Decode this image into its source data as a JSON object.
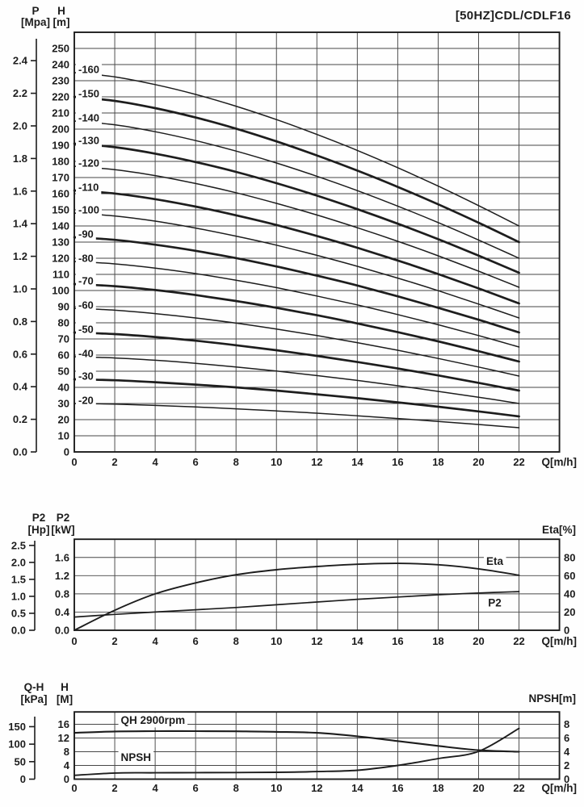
{
  "title": "[50HZ]CDL/CDLF16",
  "colors": {
    "ink": "#1d1d1d",
    "grid": "#474747",
    "background": "#fefefe"
  },
  "chart_data": [
    {
      "id": "head",
      "type": "line",
      "title": "[50HZ]CDL/CDLF16",
      "xlabel": "Q[m/h]",
      "xlim": [
        0,
        24
      ],
      "ylim": [
        0,
        260
      ],
      "grid": true,
      "x": [
        0,
        2,
        4,
        6,
        8,
        10,
        12,
        14,
        16,
        18,
        20,
        22
      ],
      "left_axes": [
        {
          "name": "P",
          "unit": "[Mpa]",
          "ticks": [
            "0.0",
            "0.2",
            "0.4",
            "0.6",
            "0.8",
            "1.0",
            "1.2",
            "1.4",
            "1.6",
            "1.8",
            "2.0",
            "2.2",
            "2.4"
          ]
        },
        {
          "name": "H",
          "unit": "[m]",
          "ticks": [
            "0",
            "10",
            "20",
            "30",
            "40",
            "50",
            "60",
            "70",
            "80",
            "90",
            "100",
            "110",
            "120",
            "130",
            "140",
            "150",
            "160",
            "170",
            "180",
            "190",
            "200",
            "210",
            "220",
            "230",
            "240",
            "250"
          ]
        }
      ],
      "series": [
        {
          "label": "-160",
          "thick": false,
          "axis": "h",
          "values": [
            235,
            232.4,
            227.6,
            221.5,
            214.2,
            205.9,
            196.7,
            186.8,
            176.1,
            164.7,
            152.6,
            140
          ]
        },
        {
          "label": "-150",
          "thick": true,
          "axis": "h",
          "values": [
            220,
            217.5,
            213.0,
            207.2,
            200.3,
            192.4,
            183.7,
            174.3,
            164.2,
            153.4,
            142.0,
            130
          ]
        },
        {
          "label": "-140",
          "thick": false,
          "axis": "h",
          "values": [
            205,
            202.7,
            198.4,
            192.9,
            186.4,
            179.0,
            170.8,
            161.9,
            152.3,
            142.1,
            131.3,
            120
          ]
        },
        {
          "label": "-130",
          "thick": true,
          "axis": "h",
          "values": [
            191,
            188.8,
            184.8,
            179.6,
            173.5,
            166.5,
            158.8,
            150.4,
            141.4,
            131.8,
            121.6,
            111
          ]
        },
        {
          "label": "-120",
          "thick": false,
          "axis": "h",
          "values": [
            177,
            174.9,
            171.2,
            166.3,
            160.6,
            154.0,
            146.8,
            138.9,
            130.5,
            121.5,
            112.0,
            102
          ]
        },
        {
          "label": "-110",
          "thick": true,
          "axis": "h",
          "values": [
            162,
            160.1,
            156.6,
            152.0,
            146.6,
            140.6,
            133.8,
            126.5,
            118.6,
            110.2,
            101.3,
            92
          ]
        },
        {
          "label": "-100",
          "thick": false,
          "axis": "h",
          "values": [
            148,
            146.2,
            143.0,
            138.7,
            133.7,
            128.1,
            121.8,
            115.0,
            107.7,
            99.9,
            91.6,
            83
          ]
        },
        {
          "label": "-90",
          "thick": true,
          "axis": "h",
          "values": [
            133,
            131.4,
            128.4,
            124.6,
            120.1,
            114.9,
            109.2,
            103.1,
            96.4,
            89.3,
            81.9,
            74
          ]
        },
        {
          "label": "-80",
          "thick": false,
          "axis": "h",
          "values": [
            118,
            116.5,
            113.9,
            110.5,
            106.4,
            101.8,
            96.6,
            91.1,
            85.1,
            78.8,
            72.1,
            65
          ]
        },
        {
          "label": "-70",
          "thick": true,
          "axis": "h",
          "values": [
            104,
            102.7,
            100.3,
            97.2,
            93.5,
            89.3,
            84.7,
            79.6,
            74.2,
            68.5,
            62.4,
            56
          ]
        },
        {
          "label": "-60",
          "thick": false,
          "axis": "h",
          "values": [
            89,
            87.8,
            85.7,
            83.0,
            79.8,
            76.1,
            72.1,
            67.7,
            63.0,
            57.9,
            52.6,
            47
          ]
        },
        {
          "label": "-50",
          "thick": true,
          "axis": "h",
          "values": [
            74,
            73.0,
            71.2,
            68.9,
            66.1,
            63.0,
            59.5,
            55.7,
            51.7,
            47.4,
            42.8,
            38
          ]
        },
        {
          "label": "-40",
          "thick": false,
          "axis": "h",
          "values": [
            59,
            58.2,
            56.8,
            54.9,
            52.6,
            50.1,
            47.3,
            44.3,
            41.0,
            37.5,
            33.9,
            30
          ]
        },
        {
          "label": "-30",
          "thick": true,
          "axis": "h",
          "values": [
            45,
            44.4,
            43.2,
            41.7,
            40.0,
            38.0,
            35.7,
            33.3,
            30.7,
            28.0,
            25.1,
            22
          ]
        },
        {
          "label": "-20",
          "thick": false,
          "axis": "h",
          "values": [
            30,
            29.6,
            28.8,
            27.9,
            26.7,
            25.4,
            24.0,
            22.4,
            20.7,
            18.9,
            17.0,
            15
          ]
        }
      ]
    },
    {
      "id": "power",
      "type": "line",
      "xlabel": "Q[m/h]",
      "xlim": [
        0,
        24
      ],
      "x": [
        0,
        2,
        4,
        6,
        8,
        10,
        12,
        14,
        16,
        18,
        20,
        22
      ],
      "left_axes": [
        {
          "name": "P2",
          "unit": "[Hp]",
          "ticks": [
            "0.0",
            "0.5",
            "1.0",
            "1.5",
            "2.0",
            "2.5"
          ]
        },
        {
          "name": "P2",
          "unit": "[kW]",
          "ticks": [
            "0.0",
            "0.4",
            "0.8",
            "1.2",
            "1.6"
          ]
        }
      ],
      "right_axis": {
        "label": "Eta[%]",
        "ticks": [
          "0",
          "20",
          "40",
          "60",
          "80"
        ]
      },
      "series": [
        {
          "label": "Eta",
          "thick": true,
          "axis": "eta",
          "values": [
            0,
            22,
            40,
            52,
            61,
            66.5,
            70,
            72.5,
            73.5,
            72,
            67.5,
            60.5
          ]
        },
        {
          "label": "P2",
          "thick": false,
          "axis": "kw",
          "values": [
            0.29,
            0.35,
            0.4,
            0.45,
            0.5,
            0.56,
            0.62,
            0.68,
            0.73,
            0.78,
            0.82,
            0.85
          ]
        }
      ],
      "annotations": [
        {
          "text": "Eta",
          "q": 20.8,
          "axis": "eta",
          "v": 76,
          "anchor": "middle"
        },
        {
          "text": "P2",
          "q": 20.8,
          "axis": "kw",
          "v": 0.6,
          "anchor": "middle"
        }
      ]
    },
    {
      "id": "npsh",
      "type": "line",
      "xlabel": "Q[m/h]",
      "xlim": [
        0,
        24
      ],
      "x": [
        0,
        2,
        4,
        6,
        8,
        10,
        12,
        14,
        16,
        18,
        20,
        22
      ],
      "left_axes": [
        {
          "name": "Q-H",
          "unit": "[kPa]",
          "ticks": [
            "0",
            "50",
            "100",
            "150"
          ]
        },
        {
          "name": "H",
          "unit": "[M]",
          "ticks": [
            "0",
            "4",
            "8",
            "12",
            "16"
          ]
        }
      ],
      "right_axis": {
        "label": "NPSH[m]",
        "ticks": [
          "0",
          "2",
          "4",
          "6",
          "8"
        ]
      },
      "series": [
        {
          "label": "QH 2900rpm",
          "thick": true,
          "axis": "h",
          "values": [
            13.5,
            13.9,
            14.0,
            14.0,
            13.95,
            13.8,
            13.5,
            12.5,
            11.1,
            9.7,
            8.45,
            8.0
          ]
        },
        {
          "label": "NPSH",
          "thick": false,
          "axis": "npsh",
          "values": [
            0.55,
            0.9,
            0.93,
            0.95,
            0.97,
            1.0,
            1.1,
            1.3,
            2.0,
            3.0,
            4.05,
            7.4
          ]
        }
      ],
      "annotations": [
        {
          "text": "QH 2900rpm",
          "q": 2.3,
          "axis": "h",
          "v": 17.2,
          "anchor": "start"
        },
        {
          "text": "NPSH",
          "q": 2.3,
          "axis": "h",
          "v": 6.3,
          "anchor": "start"
        }
      ]
    }
  ]
}
